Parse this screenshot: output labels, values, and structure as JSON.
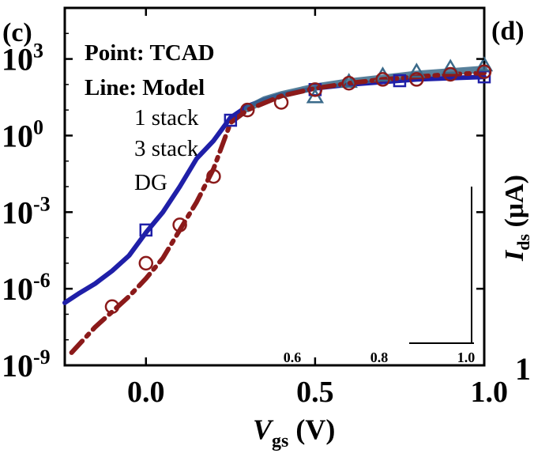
{
  "chart_data": {
    "type": "line",
    "xlabel_main": "V",
    "xlabel_sub": "gs",
    "xlabel_unit": " (V)",
    "ylabel_main": "I",
    "ylabel_sub": "ds",
    "ylabel_unit": " (μA)",
    "panel_left": "(c)",
    "panel_right": "(d)",
    "right_partial_tick": "1",
    "xlim": [
      -0.24,
      1.0
    ],
    "ylim_exp": [
      -9,
      5
    ],
    "x_ticks": [
      {
        "v": 0.0,
        "label": "0.0"
      },
      {
        "v": 0.5,
        "label": "0.5"
      },
      {
        "v": 1.0,
        "label": "1.0"
      }
    ],
    "y_ticks": [
      {
        "e": -9,
        "base": "10",
        "exp": "-9"
      },
      {
        "e": -6,
        "base": "10",
        "exp": "-6"
      },
      {
        "e": -3,
        "base": "10",
        "exp": "-3"
      },
      {
        "e": 0,
        "base": "10",
        "exp": "0"
      },
      {
        "e": 3,
        "base": "10",
        "exp": "3"
      }
    ],
    "annotations": {
      "point": "Point: TCAD",
      "line": "Line: Model",
      "legend": [
        "1 stack",
        "3 stack",
        "DG"
      ]
    },
    "inset_ticks": [
      {
        "v": 0.6,
        "label": "0.6"
      },
      {
        "v": 0.8,
        "label": "0.8"
      },
      {
        "v": 1.0,
        "label": "1.0"
      }
    ],
    "series": [
      {
        "name": "1 stack",
        "marker": "square",
        "color": "#1f1fa8",
        "line_x": [
          -0.24,
          -0.2,
          -0.15,
          -0.1,
          -0.05,
          0.0,
          0.05,
          0.1,
          0.15,
          0.2,
          0.25,
          0.3,
          0.35,
          0.4,
          0.5,
          0.6,
          0.7,
          0.8,
          0.9,
          1.0
        ],
        "line_log": [
          -6.55,
          -6.2,
          -5.8,
          -5.3,
          -4.7,
          -3.8,
          -3.0,
          -2.0,
          -0.9,
          -0.2,
          0.7,
          1.15,
          1.4,
          1.6,
          1.85,
          2.0,
          2.1,
          2.2,
          2.25,
          2.3
        ],
        "points_x": [
          0.0,
          0.25,
          0.5,
          0.75,
          1.0
        ],
        "points_log": [
          -3.7,
          0.6,
          1.8,
          2.15,
          2.3
        ]
      },
      {
        "name": "3 stack",
        "marker": "triangle",
        "color": "#3a6a8a",
        "line_x": [
          0.3,
          0.35,
          0.4,
          0.5,
          0.6,
          0.7,
          0.8,
          0.9,
          1.0
        ],
        "line_log": [
          1.05,
          1.4,
          1.6,
          1.9,
          2.1,
          2.25,
          2.4,
          2.5,
          2.6
        ],
        "points_x": [
          0.5,
          0.6,
          0.7,
          0.8,
          0.9,
          1.0
        ],
        "points_log": [
          1.5,
          2.1,
          2.35,
          2.5,
          2.65,
          2.75
        ]
      },
      {
        "name": "DG",
        "marker": "circle",
        "color": "#8b1a1a",
        "line_x": [
          -0.22,
          -0.15,
          -0.1,
          -0.05,
          0.0,
          0.05,
          0.1,
          0.15,
          0.2,
          0.25,
          0.3,
          0.4,
          0.5,
          0.6,
          0.7,
          0.8,
          0.9,
          1.0
        ],
        "line_log": [
          -8.5,
          -7.5,
          -6.9,
          -6.3,
          -5.6,
          -4.8,
          -3.7,
          -2.6,
          -1.3,
          0.5,
          1.0,
          1.55,
          1.85,
          2.05,
          2.2,
          2.3,
          2.4,
          2.45
        ],
        "points_x": [
          -0.1,
          0.0,
          0.1,
          0.2,
          0.3,
          0.4,
          0.5,
          0.6,
          0.7,
          0.8,
          0.9,
          1.0
        ],
        "points_log": [
          -6.7,
          -5.0,
          -3.5,
          -1.6,
          1.0,
          1.3,
          1.8,
          2.05,
          2.2,
          2.2,
          2.4,
          2.5
        ]
      }
    ]
  }
}
